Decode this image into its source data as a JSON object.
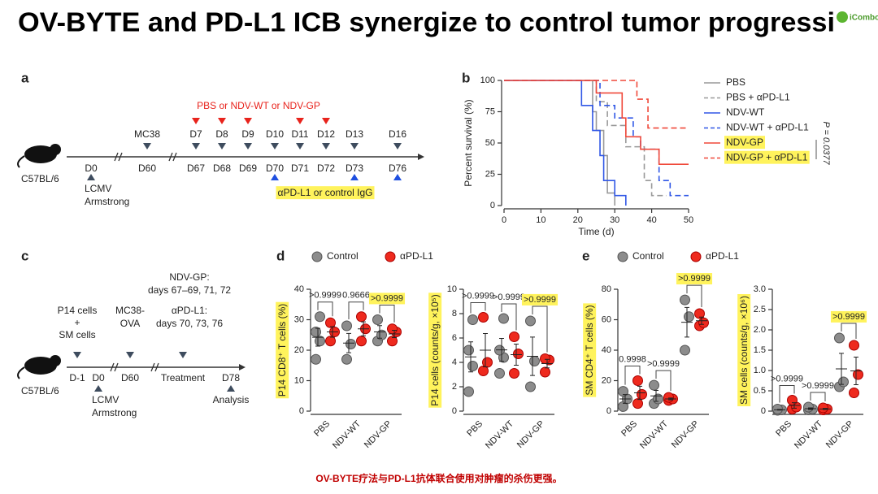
{
  "title": "OV-BYTE and PD-L1 ICB synergize to control tumor progressi",
  "logo": "iCombo",
  "caption": "OV-BYTE疗法与PD-L1抗体联合使用对肿瘤的杀伤更强。",
  "panel_a": {
    "label": "a",
    "strain": "C57BL/6",
    "treatment": "PBS or NDV-WT or NDV-GP",
    "markers": [
      "MC38",
      "D7",
      "D8",
      "D9",
      "D10",
      "D11",
      "D12",
      "D13",
      "D16"
    ],
    "days": [
      "D0",
      "D60",
      "D67",
      "D68",
      "D69",
      "D70",
      "D71",
      "D72",
      "D73",
      "D76"
    ],
    "infection": [
      "LCMV",
      "Armstrong"
    ],
    "antibody": "αPD-L1 or control IgG"
  },
  "panel_c": {
    "label": "c",
    "strain": "C57BL/6",
    "transfer": [
      "P14 cells",
      "+",
      "SM cells"
    ],
    "tumor": [
      "MC38-",
      "OVA"
    ],
    "schedule": [
      "NDV-GP:",
      "days 67–69, 71, 72",
      "αPD-L1:",
      "days 70, 73, 76"
    ],
    "days": [
      "D-1",
      "D0",
      "D60",
      "Treatment",
      "D78"
    ],
    "infection": [
      "LCMV",
      "Armstrong"
    ],
    "readout": "Analysis"
  },
  "chart_data": [
    {
      "type": "survival",
      "label": "b",
      "xlabel": "Time (d)",
      "ylabel": "Percent survival (%)",
      "xlim": [
        0,
        50
      ],
      "xticks": [
        0,
        10,
        20,
        30,
        40,
        50
      ],
      "ylim": [
        0,
        100
      ],
      "yticks": [
        0,
        25,
        50,
        75,
        100
      ],
      "annotation": "P = 0.0377",
      "series": [
        {
          "name": "PBS",
          "color": "#999999",
          "dash": false,
          "x": [
            0,
            24,
            25,
            27,
            28,
            30
          ],
          "values": [
            100,
            75,
            60,
            40,
            10,
            0
          ]
        },
        {
          "name": "PBS + αPD-L1",
          "color": "#999999",
          "dash": true,
          "x": [
            0,
            25,
            28,
            33,
            38,
            40,
            44
          ],
          "values": [
            100,
            83,
            64,
            47,
            20,
            8,
            8
          ]
        },
        {
          "name": "NDV-WT",
          "color": "#3057e6",
          "dash": false,
          "x": [
            0,
            21,
            24,
            26,
            27,
            30,
            33
          ],
          "values": [
            100,
            80,
            60,
            40,
            20,
            8,
            0
          ]
        },
        {
          "name": "NDV-WT + αPD-L1",
          "color": "#3057e6",
          "dash": true,
          "x": [
            0,
            26,
            30,
            35,
            37,
            42,
            45,
            50
          ],
          "values": [
            100,
            80,
            70,
            55,
            45,
            20,
            8,
            8
          ]
        },
        {
          "name": "NDV-GP",
          "color": "#f0493a",
          "dash": false,
          "highlight": true,
          "x": [
            0,
            25,
            32,
            33,
            37,
            42,
            50
          ],
          "values": [
            100,
            90,
            70,
            55,
            45,
            33,
            33
          ]
        },
        {
          "name": "NDV-GP + αPD-L1",
          "color": "#f0493a",
          "dash": true,
          "highlight": true,
          "x": [
            0,
            36,
            39,
            50
          ],
          "values": [
            100,
            85,
            62,
            62
          ]
        }
      ]
    },
    {
      "type": "dot",
      "label": "d",
      "categories": [
        "PBS",
        "NDV-WT",
        "NDV-GP"
      ],
      "series": [
        {
          "name": "Control",
          "color": "#8c8c8c"
        },
        {
          "name": "αPD-L1",
          "color": "#ee2a1e"
        }
      ],
      "plots": [
        {
          "ylabel": "P14 CD8⁺ T cells (%)",
          "ylim": [
            0,
            40
          ],
          "yticks": [
            0,
            10,
            20,
            30,
            40
          ],
          "values": [
            [
              [
                17,
                23,
                26,
                31
              ],
              [
                17,
                22,
                28
              ],
              [
                23,
                25,
                30
              ]
            ],
            [
              [
                23,
                26,
                29
              ],
              [
                23,
                27,
                31
              ],
              [
                23,
                26,
                27
              ]
            ]
          ],
          "p_values": [
            ">0.9999",
            "0.9666",
            ">0.9999"
          ],
          "p_highlight": [
            false,
            false,
            true
          ]
        },
        {
          "ylabel": "P14 cells (counts/g, ×10⁵)",
          "ylim": [
            0,
            10
          ],
          "yticks": [
            0,
            2,
            4,
            6,
            8,
            10
          ],
          "values": [
            [
              [
                1.6,
                3.7,
                5,
                7.5
              ],
              [
                3.1,
                4.4,
                5,
                7.6
              ],
              [
                2,
                4.1,
                7.4
              ]
            ],
            [
              [
                3.3,
                4,
                7.7
              ],
              [
                3.1,
                4.7,
                6.1
              ],
              [
                3.2,
                4.2,
                4.3
              ]
            ]
          ],
          "p_values": [
            ">0.9999",
            ">0.9999",
            ">0.9999"
          ],
          "p_highlight": [
            false,
            false,
            true
          ]
        }
      ]
    },
    {
      "type": "dot",
      "label": "e",
      "categories": [
        "PBS",
        "NDV-WT",
        "NDV-GP"
      ],
      "series": [
        {
          "name": "Control",
          "color": "#8c8c8c"
        },
        {
          "name": "αPD-L1",
          "color": "#ee2a1e"
        }
      ],
      "plots": [
        {
          "ylabel": "SM CD4⁺ T cells (%)",
          "ylim": [
            0,
            80
          ],
          "yticks": [
            0,
            20,
            40,
            60,
            80
          ],
          "values": [
            [
              [
                3,
                8,
                13
              ],
              [
                5,
                8,
                17
              ],
              [
                40,
                62,
                73
              ]
            ],
            [
              [
                5,
                11,
                20
              ],
              [
                7,
                8,
                9
              ],
              [
                56,
                58,
                64
              ]
            ]
          ],
          "p_values": [
            "0.9998",
            ">0.9999",
            ">0.9999"
          ],
          "p_highlight": [
            false,
            false,
            true
          ]
        },
        {
          "ylabel": "SM cells (counts/g, ×10⁶)",
          "ylim": [
            0,
            3
          ],
          "yticks": [
            0,
            0.5,
            {
              "value": 1,
              "label": "1.0"
            },
            1.5,
            {
              "value": 2,
              "label": "2.0"
            },
            2.5,
            {
              "value": 3,
              "label": "3.0"
            }
          ],
          "values": [
            [
              [
                0.02,
                0.03,
                0.05
              ],
              [
                0.03,
                0.05,
                0.1
              ],
              [
                0.6,
                0.72,
                1.8
              ]
            ],
            [
              [
                0.05,
                0.1,
                0.27
              ],
              [
                0.03,
                0.05,
                0.08
              ],
              [
                0.45,
                0.9,
                1.62
              ]
            ]
          ],
          "p_values": [
            ">0.9999",
            ">0.9999",
            ">0.9999"
          ],
          "p_highlight": [
            false,
            false,
            true
          ]
        }
      ]
    }
  ]
}
